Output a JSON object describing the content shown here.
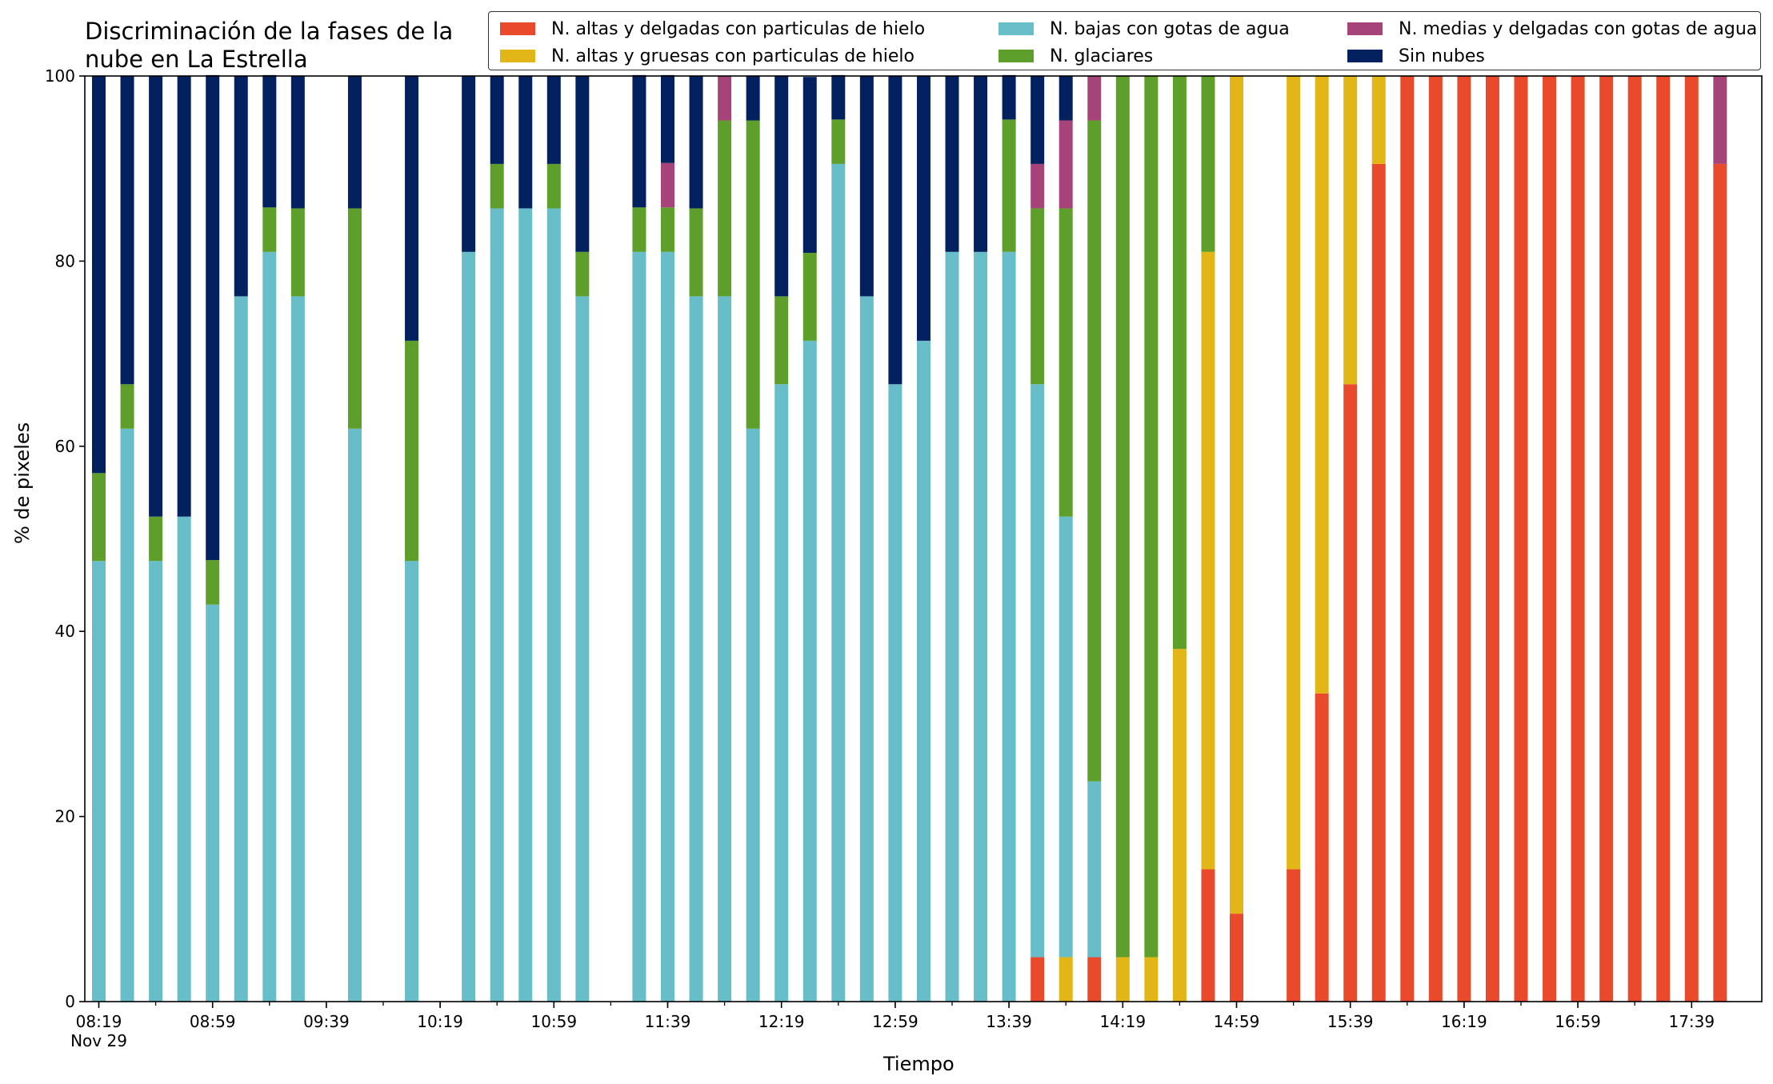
{
  "chart_data": {
    "type": "bar",
    "stacked": true,
    "title": "Discriminación de la fases de la\nnube en La Estrella",
    "xlabel": "Tiempo",
    "ylabel": "% de pixeles",
    "ylim": [
      0,
      100
    ],
    "yticks": [
      "0",
      "20",
      "40",
      "60",
      "80",
      "100"
    ],
    "xticks": [
      {
        "slot": 0,
        "label": "08:19\nNov 29"
      },
      {
        "slot": 4,
        "label": "08:59"
      },
      {
        "slot": 8,
        "label": "09:39"
      },
      {
        "slot": 12,
        "label": "10:19"
      },
      {
        "slot": 16,
        "label": "10:59"
      },
      {
        "slot": 20,
        "label": "11:39"
      },
      {
        "slot": 24,
        "label": "12:19"
      },
      {
        "slot": 28,
        "label": "12:59"
      },
      {
        "slot": 32,
        "label": "13:39"
      },
      {
        "slot": 36,
        "label": "14:19"
      },
      {
        "slot": 40,
        "label": "14:59"
      },
      {
        "slot": 44,
        "label": "15:39"
      },
      {
        "slot": 48,
        "label": "16:19"
      },
      {
        "slot": 52,
        "label": "16:59"
      },
      {
        "slot": 56,
        "label": "17:39"
      }
    ],
    "time_step_minutes": 10,
    "time_slots": 58,
    "legend_position": "top-right",
    "series": [
      {
        "name": "N. altas y delgadas con particulas de hielo",
        "color": "#ea4a2c"
      },
      {
        "name": "N. altas y gruesas con particulas de hielo",
        "color": "#e3b618"
      },
      {
        "name": "N. bajas con gotas de agua",
        "color": "#67bdc8"
      },
      {
        "name": "N. glaciares",
        "color": "#5e9e2a"
      },
      {
        "name": "N. medias y delgadas con gotas de agua",
        "color": "#a6447a"
      },
      {
        "name": "Sin nubes",
        "color": "#03205f"
      }
    ],
    "bars": [
      {
        "slot": 0,
        "values": [
          0,
          0,
          47.6,
          9.5,
          0,
          42.9
        ]
      },
      {
        "slot": 1,
        "values": [
          0,
          0,
          61.9,
          4.8,
          0,
          33.3
        ]
      },
      {
        "slot": 2,
        "values": [
          0,
          0,
          47.6,
          4.8,
          0,
          47.6
        ]
      },
      {
        "slot": 3,
        "values": [
          0,
          0,
          52.4,
          0,
          0,
          47.6
        ]
      },
      {
        "slot": 4,
        "values": [
          0,
          0,
          42.9,
          4.8,
          0,
          52.4
        ]
      },
      {
        "slot": 5,
        "values": [
          0,
          0,
          76.2,
          0,
          0,
          23.8
        ]
      },
      {
        "slot": 6,
        "values": [
          0,
          0,
          81.0,
          4.8,
          0,
          14.3
        ]
      },
      {
        "slot": 7,
        "values": [
          0,
          0,
          76.2,
          9.5,
          0,
          14.3
        ]
      },
      {
        "slot": 9,
        "values": [
          0,
          0,
          61.9,
          23.8,
          0,
          14.3
        ]
      },
      {
        "slot": 11,
        "values": [
          0,
          0,
          47.6,
          23.8,
          0,
          28.6
        ]
      },
      {
        "slot": 13,
        "values": [
          0,
          0,
          81.0,
          0,
          0,
          19.0
        ]
      },
      {
        "slot": 14,
        "values": [
          0,
          0,
          85.7,
          4.8,
          0,
          9.5
        ]
      },
      {
        "slot": 15,
        "values": [
          0,
          0,
          85.7,
          0,
          0,
          14.3
        ]
      },
      {
        "slot": 16,
        "values": [
          0,
          0,
          85.7,
          4.8,
          0,
          9.5
        ]
      },
      {
        "slot": 17,
        "values": [
          0,
          0,
          76.2,
          4.8,
          0,
          19.0
        ]
      },
      {
        "slot": 19,
        "values": [
          0,
          0,
          81.0,
          4.8,
          0,
          14.3
        ]
      },
      {
        "slot": 20,
        "values": [
          0,
          0,
          81.0,
          4.8,
          4.8,
          9.5
        ]
      },
      {
        "slot": 21,
        "values": [
          0,
          0,
          76.2,
          9.5,
          0,
          14.3
        ]
      },
      {
        "slot": 22,
        "values": [
          0,
          0,
          76.2,
          19.0,
          4.8,
          0
        ]
      },
      {
        "slot": 23,
        "values": [
          0,
          0,
          61.9,
          33.3,
          0,
          4.8
        ]
      },
      {
        "slot": 24,
        "values": [
          0,
          0,
          66.7,
          9.5,
          0,
          23.8
        ]
      },
      {
        "slot": 25,
        "values": [
          0,
          0,
          71.4,
          9.5,
          0,
          19.0
        ]
      },
      {
        "slot": 26,
        "values": [
          0,
          0,
          90.5,
          4.8,
          0,
          4.8
        ]
      },
      {
        "slot": 27,
        "values": [
          0,
          0,
          76.2,
          0,
          0,
          23.8
        ]
      },
      {
        "slot": 28,
        "values": [
          0,
          0,
          66.7,
          0,
          0,
          33.3
        ]
      },
      {
        "slot": 29,
        "values": [
          0,
          0,
          71.4,
          0,
          0,
          28.6
        ]
      },
      {
        "slot": 30,
        "values": [
          0,
          0,
          81.0,
          0,
          0,
          19.0
        ]
      },
      {
        "slot": 31,
        "values": [
          0,
          0,
          81.0,
          0,
          0,
          19.0
        ]
      },
      {
        "slot": 32,
        "values": [
          0,
          0,
          81.0,
          14.3,
          0,
          4.8
        ]
      },
      {
        "slot": 33,
        "values": [
          4.8,
          0,
          61.9,
          19.0,
          4.8,
          9.5
        ]
      },
      {
        "slot": 34,
        "values": [
          0,
          4.8,
          47.6,
          33.3,
          9.5,
          4.8
        ]
      },
      {
        "slot": 35,
        "values": [
          4.8,
          0,
          19.0,
          71.4,
          4.8,
          0
        ]
      },
      {
        "slot": 36,
        "values": [
          0,
          4.8,
          0,
          95.2,
          0,
          0
        ]
      },
      {
        "slot": 37,
        "values": [
          0,
          4.8,
          0,
          95.2,
          0,
          0
        ]
      },
      {
        "slot": 38,
        "values": [
          0,
          38.1,
          0,
          61.9,
          0,
          0
        ]
      },
      {
        "slot": 39,
        "values": [
          14.3,
          66.7,
          0,
          19.0,
          0,
          0
        ]
      },
      {
        "slot": 40,
        "values": [
          9.5,
          90.5,
          0,
          0,
          0,
          0
        ]
      },
      {
        "slot": 42,
        "values": [
          14.3,
          85.7,
          0,
          0,
          0,
          0
        ]
      },
      {
        "slot": 43,
        "values": [
          33.3,
          66.7,
          0,
          0,
          0,
          0
        ]
      },
      {
        "slot": 44,
        "values": [
          66.7,
          33.3,
          0,
          0,
          0,
          0
        ]
      },
      {
        "slot": 45,
        "values": [
          90.5,
          9.5,
          0,
          0,
          0,
          0
        ]
      },
      {
        "slot": 46,
        "values": [
          100,
          0,
          0,
          0,
          0,
          0
        ]
      },
      {
        "slot": 47,
        "values": [
          100,
          0,
          0,
          0,
          0,
          0
        ]
      },
      {
        "slot": 48,
        "values": [
          100,
          0,
          0,
          0,
          0,
          0
        ]
      },
      {
        "slot": 49,
        "values": [
          100,
          0,
          0,
          0,
          0,
          0
        ]
      },
      {
        "slot": 50,
        "values": [
          100,
          0,
          0,
          0,
          0,
          0
        ]
      },
      {
        "slot": 51,
        "values": [
          100,
          0,
          0,
          0,
          0,
          0
        ]
      },
      {
        "slot": 52,
        "values": [
          100,
          0,
          0,
          0,
          0,
          0
        ]
      },
      {
        "slot": 53,
        "values": [
          100,
          0,
          0,
          0,
          0,
          0
        ]
      },
      {
        "slot": 54,
        "values": [
          100,
          0,
          0,
          0,
          0,
          0
        ]
      },
      {
        "slot": 55,
        "values": [
          100,
          0,
          0,
          0,
          0,
          0
        ]
      },
      {
        "slot": 56,
        "values": [
          100,
          0,
          0,
          0,
          0,
          0
        ]
      },
      {
        "slot": 57,
        "values": [
          90.5,
          0,
          0,
          0,
          9.5,
          0
        ]
      }
    ]
  }
}
